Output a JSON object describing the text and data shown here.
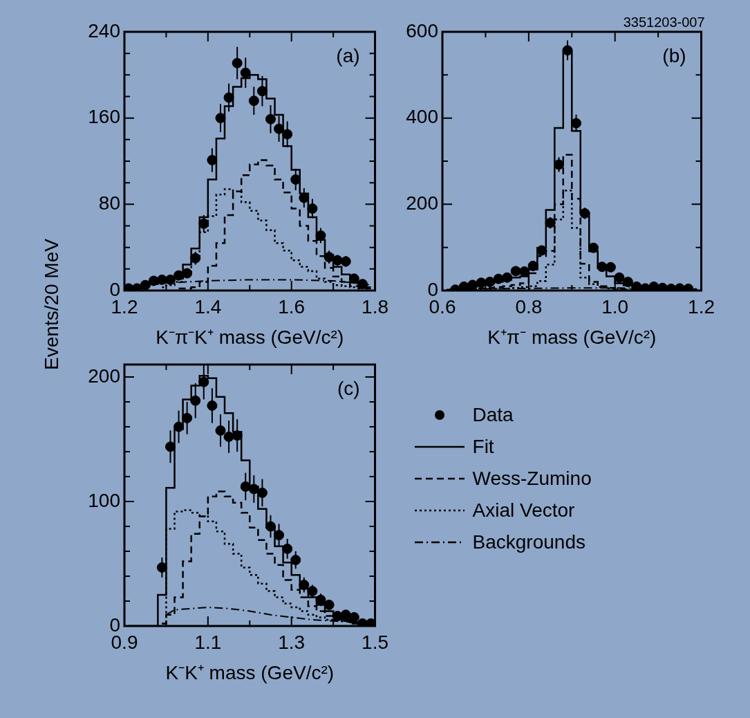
{
  "chart_data": [
    {
      "type": "scatter",
      "ylabel": "Events/20 MeV",
      "xlabel": "K⁻π⁻K⁺ mass (GeV/c²)",
      "annotations": [
        "(a)"
      ],
      "xlim": [
        1.2,
        1.8
      ],
      "xticks": [
        1.2,
        {
          "value": 1.3,
          "label": null
        },
        1.4,
        {
          "value": 1.5,
          "label": null
        },
        1.6,
        {
          "value": 1.7,
          "label": null
        },
        1.8
      ],
      "ylim": [
        0,
        240
      ],
      "yticks": [
        0,
        {
          "value": 20,
          "label": null
        },
        {
          "value": 40,
          "label": null
        },
        {
          "value": 60,
          "label": null
        },
        80,
        {
          "value": 100,
          "label": null
        },
        {
          "value": 120,
          "label": null
        },
        {
          "value": 140,
          "label": null
        },
        160,
        {
          "value": 180,
          "label": null
        },
        {
          "value": 200,
          "label": null
        },
        {
          "value": 220,
          "label": null
        },
        240
      ],
      "series": [
        {
          "marker": "circle",
          "color": "#000000",
          "x": [
            1.21,
            1.23,
            1.25,
            1.27,
            1.29,
            1.31,
            1.33,
            1.35,
            1.37,
            1.39,
            1.41,
            1.43,
            1.45,
            1.47,
            1.49,
            1.51,
            1.53,
            1.55,
            1.57,
            1.59,
            1.61,
            1.63,
            1.65,
            1.67,
            1.69,
            1.71,
            1.73,
            1.75,
            1.77
          ],
          "values": [
            2,
            2,
            5,
            9,
            10,
            10,
            14,
            16,
            30,
            62,
            121,
            160,
            179,
            211,
            202,
            176,
            185,
            159,
            150,
            145,
            103,
            86,
            76,
            51,
            31,
            28,
            27,
            11,
            6
          ],
          "errors": [
            null,
            null,
            null,
            null,
            null,
            null,
            null,
            null,
            6,
            8,
            11,
            13,
            13,
            15,
            14,
            13,
            14,
            13,
            12,
            12,
            10,
            9,
            9,
            7,
            6,
            5,
            5,
            null,
            null
          ]
        },
        {
          "type": "step",
          "line_style": "solid",
          "color": "#000000",
          "x": [
            1.21,
            1.23,
            1.25,
            1.27,
            1.29,
            1.31,
            1.33,
            1.35,
            1.37,
            1.39,
            1.41,
            1.43,
            1.45,
            1.47,
            1.49,
            1.51,
            1.53,
            1.55,
            1.57,
            1.59,
            1.61,
            1.63,
            1.65,
            1.67,
            1.69,
            1.71,
            1.73,
            1.75,
            1.77,
            1.79
          ],
          "values": [
            2,
            2,
            4,
            6,
            8,
            11,
            11,
            24,
            39,
            68,
            103,
            141,
            171,
            189,
            197,
            200,
            196,
            178,
            163,
            134,
            112,
            90,
            68,
            47,
            33,
            22,
            15,
            8,
            6,
            3
          ]
        },
        {
          "type": "step",
          "line_style": "dashed",
          "color": "#000000",
          "x": [
            1.33,
            1.35,
            1.37,
            1.39,
            1.41,
            1.43,
            1.45,
            1.47,
            1.49,
            1.51,
            1.53,
            1.55,
            1.57,
            1.59,
            1.61,
            1.63,
            1.65,
            1.67,
            1.69,
            1.71,
            1.73,
            1.75,
            1.77,
            1.79
          ],
          "values": [
            2,
            2,
            3,
            8,
            23,
            44,
            70,
            92,
            107,
            117,
            121,
            116,
            103,
            91,
            76,
            60,
            46,
            32,
            21,
            13,
            8,
            4,
            2,
            2
          ]
        },
        {
          "type": "step",
          "line_style": "dotted",
          "color": "#000000",
          "x": [
            1.29,
            1.31,
            1.33,
            1.35,
            1.37,
            1.39,
            1.41,
            1.43,
            1.45,
            1.47,
            1.49,
            1.51,
            1.53,
            1.55,
            1.57,
            1.59,
            1.61,
            1.63,
            1.65,
            1.67,
            1.69,
            1.71,
            1.73,
            1.75,
            1.77,
            1.79
          ],
          "values": [
            3,
            5,
            8,
            14,
            31,
            54,
            69,
            89,
            94,
            92,
            82,
            74,
            65,
            56,
            44,
            37,
            28,
            22,
            18,
            11,
            8,
            5,
            4,
            3,
            3,
            2
          ]
        },
        {
          "type": "line",
          "line_style": "dashdot",
          "color": "#000000",
          "x": [
            1.25,
            1.3,
            1.4,
            1.5,
            1.6,
            1.7,
            1.75,
            1.79
          ],
          "values": [
            6,
            7,
            9,
            10,
            10,
            9,
            7,
            5
          ]
        }
      ]
    },
    {
      "type": "scatter",
      "xlabel": "K⁺π⁻ mass (GeV/c²)",
      "annotations": [
        "(b)",
        "3351203-007"
      ],
      "xlim": [
        0.6,
        1.2
      ],
      "xticks": [
        0.6,
        {
          "value": 0.7,
          "label": null
        },
        0.8,
        {
          "value": 0.9,
          "label": null
        },
        {
          "value": 1.0,
          "label": "1.0"
        },
        {
          "value": 1.1,
          "label": null
        },
        1.2
      ],
      "ylim": [
        0,
        600
      ],
      "yticks": [
        0,
        {
          "value": 100,
          "label": null
        },
        200,
        {
          "value": 300,
          "label": null
        },
        400,
        {
          "value": 500,
          "label": null
        },
        600
      ],
      "series": [
        {
          "marker": "circle",
          "color": "#000000",
          "x": [
            0.63,
            0.65,
            0.67,
            0.69,
            0.71,
            0.73,
            0.75,
            0.77,
            0.79,
            0.81,
            0.83,
            0.85,
            0.87,
            0.89,
            0.91,
            0.93,
            0.95,
            0.97,
            0.99,
            1.01,
            1.03,
            1.05,
            1.07,
            1.09,
            1.11,
            1.13,
            1.15,
            1.17
          ],
          "values": [
            2,
            9,
            13,
            18,
            20,
            27,
            30,
            45,
            44,
            57,
            93,
            157,
            292,
            557,
            388,
            179,
            99,
            55,
            54,
            30,
            20,
            9,
            5,
            9,
            6,
            4,
            5,
            4
          ],
          "errors": [
            null,
            null,
            null,
            null,
            null,
            null,
            null,
            null,
            null,
            null,
            null,
            13,
            17,
            23,
            20,
            13,
            null,
            null,
            null,
            null,
            null,
            null,
            null,
            null,
            null,
            null,
            null,
            null
          ]
        },
        {
          "type": "step",
          "line_style": "solid",
          "color": "#000000",
          "x": [
            0.61,
            0.63,
            0.65,
            0.67,
            0.69,
            0.71,
            0.73,
            0.75,
            0.77,
            0.79,
            0.81,
            0.83,
            0.85,
            0.87,
            0.89,
            0.91,
            0.93,
            0.95,
            0.97,
            0.99,
            1.01,
            1.03,
            1.05,
            1.07,
            1.09,
            1.11,
            1.13,
            1.15,
            1.17,
            1.19
          ],
          "values": [
            2,
            4,
            6,
            9,
            13,
            17,
            20,
            25,
            30,
            33,
            49,
            99,
            187,
            377,
            555,
            370,
            180,
            91,
            52,
            33,
            17,
            12,
            7,
            5,
            5,
            4,
            4,
            3,
            3,
            3
          ]
        },
        {
          "type": "step",
          "line_style": "dashed",
          "color": "#000000",
          "x": [
            0.61,
            0.63,
            0.65,
            0.67,
            0.69,
            0.71,
            0.73,
            0.75,
            0.77,
            0.79,
            0.81,
            0.83,
            0.85,
            0.87,
            0.89,
            0.91,
            0.93,
            0.95,
            0.97,
            0.99,
            1.01,
            1.03,
            1.05,
            1.07,
            1.09,
            1.11,
            1.13,
            1.15,
            1.17,
            1.19
          ],
          "values": [
            1,
            2,
            3,
            4,
            5,
            6,
            8,
            10,
            13,
            17,
            40,
            80,
            92,
            200,
            315,
            213,
            62,
            20,
            10,
            6,
            4,
            3,
            2,
            2,
            2,
            2,
            1,
            1,
            1,
            1
          ]
        },
        {
          "type": "step",
          "line_style": "dotted",
          "color": "#000000",
          "x": [
            0.61,
            0.63,
            0.65,
            0.67,
            0.69,
            0.71,
            0.73,
            0.75,
            0.77,
            0.79,
            0.81,
            0.83,
            0.85,
            0.87,
            0.89,
            0.91,
            0.93,
            0.95,
            0.97,
            0.99,
            1.01,
            1.03,
            1.05,
            1.07,
            1.09,
            1.11,
            1.13,
            1.15,
            1.17,
            1.19
          ],
          "values": [
            1,
            1,
            2,
            2,
            3,
            3,
            4,
            5,
            6,
            8,
            10,
            22,
            60,
            165,
            232,
            145,
            30,
            15,
            8,
            5,
            3,
            2,
            2,
            1,
            1,
            1,
            1,
            1,
            1,
            1
          ]
        },
        {
          "type": "line",
          "line_style": "dashdot",
          "color": "#000000",
          "x": [
            0.62,
            0.7,
            0.8,
            0.9,
            1.0,
            1.1,
            1.19
          ],
          "values": [
            3,
            4,
            5,
            6,
            6,
            5,
            4
          ]
        }
      ]
    },
    {
      "type": "scatter",
      "xlabel": "K⁻K⁺ mass (GeV/c²)",
      "annotations": [
        "(c)"
      ],
      "legend": "right",
      "xlim": [
        0.9,
        1.5
      ],
      "xticks": [
        0.9,
        {
          "value": 1.0,
          "label": null
        },
        1.1,
        {
          "value": 1.2,
          "label": null
        },
        1.3,
        {
          "value": 1.4,
          "label": null
        },
        1.5
      ],
      "ylim": [
        0,
        210
      ],
      "yticks": [
        0,
        {
          "value": 20,
          "label": null
        },
        {
          "value": 40,
          "label": null
        },
        {
          "value": 60,
          "label": null
        },
        {
          "value": 80,
          "label": null
        },
        100,
        {
          "value": 120,
          "label": null
        },
        {
          "value": 140,
          "label": null
        },
        {
          "value": 160,
          "label": null
        },
        {
          "value": 180,
          "label": null
        },
        200
      ],
      "series": [
        {
          "name": "Data",
          "marker": "circle",
          "color": "#000000",
          "x": [
            0.99,
            1.01,
            1.03,
            1.05,
            1.07,
            1.09,
            1.11,
            1.13,
            1.15,
            1.17,
            1.19,
            1.21,
            1.23,
            1.25,
            1.27,
            1.29,
            1.31,
            1.33,
            1.35,
            1.37,
            1.39,
            1.41,
            1.43,
            1.45,
            1.47,
            1.49
          ],
          "values": [
            47,
            144,
            160,
            167,
            181,
            196,
            177,
            157,
            152,
            153,
            112,
            110,
            107,
            80,
            73,
            62,
            53,
            33,
            28,
            21,
            17,
            8,
            9,
            7,
            2,
            2
          ],
          "errors": [
            8,
            13,
            13,
            13,
            14,
            14,
            14,
            13,
            13,
            13,
            11,
            11,
            11,
            9,
            9,
            8,
            7,
            6,
            5,
            5,
            null,
            null,
            null,
            null,
            null,
            null
          ]
        },
        {
          "type": "step",
          "name": "Fit",
          "line_style": "solid",
          "color": "#000000",
          "x": [
            0.91,
            0.93,
            0.95,
            0.97,
            0.99,
            1.01,
            1.03,
            1.05,
            1.07,
            1.09,
            1.11,
            1.13,
            1.15,
            1.17,
            1.19,
            1.21,
            1.23,
            1.25,
            1.27,
            1.29,
            1.31,
            1.33,
            1.35,
            1.37,
            1.39,
            1.41,
            1.43,
            1.45,
            1.47,
            1.49
          ],
          "values": [
            0,
            0,
            0,
            0,
            25,
            111,
            158,
            182,
            193,
            201,
            199,
            184,
            171,
            156,
            133,
            112,
            94,
            79,
            64,
            51,
            41,
            30,
            23,
            17,
            12,
            8,
            5,
            3,
            2,
            2
          ]
        },
        {
          "type": "step",
          "name": "Wess-Zumino",
          "line_style": "dashed",
          "color": "#000000",
          "x": [
            0.99,
            1.01,
            1.03,
            1.05,
            1.07,
            1.09,
            1.11,
            1.13,
            1.15,
            1.17,
            1.19,
            1.21,
            1.23,
            1.25,
            1.27,
            1.29,
            1.31,
            1.33,
            1.35,
            1.37,
            1.39,
            1.41,
            1.43,
            1.45,
            1.47,
            1.49
          ],
          "values": [
            2,
            9,
            23,
            52,
            74,
            88,
            104,
            108,
            104,
            99,
            91,
            79,
            69,
            58,
            49,
            37,
            29,
            23,
            16,
            12,
            8,
            5,
            4,
            2,
            2,
            2
          ]
        },
        {
          "type": "step",
          "name": "Axial Vector",
          "line_style": "dotted",
          "color": "#000000",
          "x": [
            0.99,
            1.01,
            1.03,
            1.05,
            1.07,
            1.09,
            1.11,
            1.13,
            1.15,
            1.17,
            1.19,
            1.21,
            1.23,
            1.25,
            1.27,
            1.29,
            1.31,
            1.33,
            1.35,
            1.37,
            1.39,
            1.41,
            1.43,
            1.45,
            1.47,
            1.49
          ],
          "values": [
            2,
            78,
            92,
            93,
            91,
            88,
            84,
            76,
            66,
            58,
            47,
            41,
            34,
            28,
            23,
            18,
            15,
            12,
            9,
            7,
            5,
            5,
            4,
            4,
            3,
            3
          ]
        },
        {
          "type": "line",
          "name": "Backgrounds",
          "line_style": "dashdot",
          "color": "#000000",
          "x": [
            1.0,
            1.02,
            1.06,
            1.1,
            1.15,
            1.2,
            1.25,
            1.3,
            1.35,
            1.4,
            1.5
          ],
          "values": [
            9,
            13,
            14,
            15,
            14,
            12,
            9,
            7,
            5,
            4,
            2
          ]
        }
      ]
    }
  ]
}
